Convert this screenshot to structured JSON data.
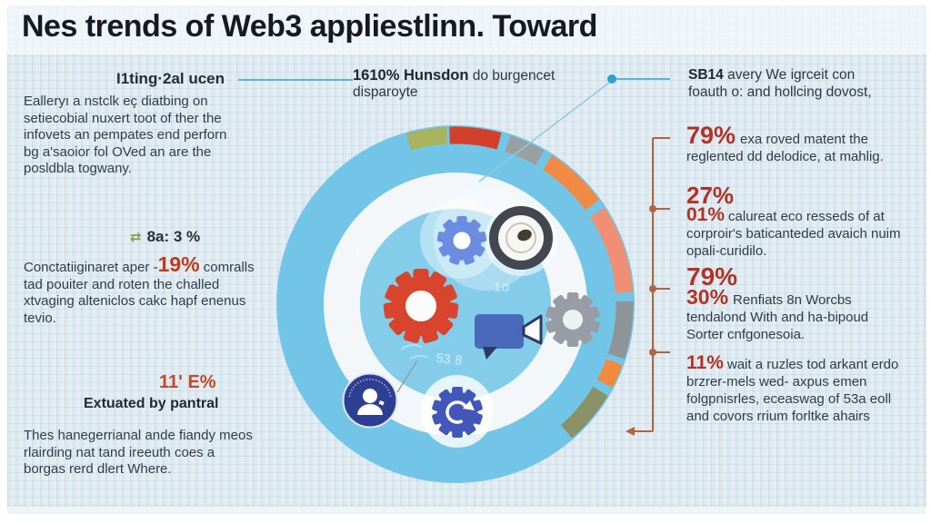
{
  "title": "Nes trends of Web3 appliestlinn. Toward",
  "left_column": {
    "heading": "I1ting·2al ucen",
    "para1": "Ealleryı a nstclk eç diatbing on setiecobial nuxert toot of ther the infovets an pempates end perforn bg a'saoior fol OVed an are the posldbla togwany.",
    "mini_stat": {
      "icon": "green-exchange-arrows-icon",
      "label": "8a: 3 %"
    },
    "para2": {
      "before": "Conctatiiginaret aper -",
      "pct": "19%",
      "after": " comralls tad pouiter and roten the challed xtvaging alteniclos cakc hapf enenus tevio."
    },
    "stat": {
      "pct": "11' E%",
      "caption": "Extuated by pantral"
    },
    "para3": "Thes hanegerrianal ande fiandy meos rlairding nat tand ireeuth coes a borgas rerd dlert Where."
  },
  "center_callout": {
    "bold": "1610% Hunsdon",
    "rest": " do burgencet",
    "line2": "disparoyte"
  },
  "right_callout": {
    "bold": "SB14",
    "rest": " avery We igrceit con foauth o: and hollcing dovost,"
  },
  "right_stats": [
    {
      "pct": "79%",
      "text": "exa roved matent the reglented dd delodice, at mahlig."
    },
    {
      "pct": "27%",
      "pct2": "01%",
      "text": "calureat eco resseds of at corproir's baticanteded avaich nuim opali-curidilo."
    },
    {
      "pct": "79%",
      "pct2": "30%",
      "text": "Renfiats 8n Worcbs tendalond With and ha-bipoud Sorter cnfgonesoia."
    },
    {
      "pct": "11%",
      "text": "wait a ruzles tod arkant erdo brzrer-mels wed- axpus emen folgpnisrles, eceaswag of 53a eoll and covors rrium forltke ahairs"
    }
  ],
  "wheel": {
    "icons": [
      "gear-icon",
      "camera-lens-icon",
      "gear-icon",
      "video-camera-icon",
      "gear-icon",
      "user-badge-icon",
      "refresh-gear-icon"
    ],
    "segments": [
      {
        "color": "#a9b25c",
        "start": -16,
        "end": -3
      },
      {
        "color": "#d23f2b",
        "start": -2,
        "end": 15
      },
      {
        "color": "#9aa0a2",
        "start": 18,
        "end": 30
      },
      {
        "color": "#f08a44",
        "start": 33,
        "end": 54
      },
      {
        "color": "#ef8f76",
        "start": 57,
        "end": 86
      },
      {
        "color": "#8e9598",
        "start": 89,
        "end": 108
      },
      {
        "color": "#ef8a3f",
        "start": 110,
        "end": 118
      },
      {
        "color": "#8a9166",
        "start": 121,
        "end": 139
      }
    ]
  },
  "colors": {
    "ring_outer": "#73c5e7",
    "ring_inner": "#84cdea",
    "ring_gap": "#f3f7f9",
    "accent_red": "#b23227",
    "accent_orange_red": "#c03a1e",
    "connector_blue": "#58b6d9",
    "bracket_brown": "#b2643c",
    "gear_red": "#d8452c",
    "gear_blue": "#6b8ce0",
    "gear_gray": "#989ca4",
    "gear_indigo": "#4356bc",
    "camera_blue": "#4a69bb",
    "user_navy": "#2c3f92"
  }
}
